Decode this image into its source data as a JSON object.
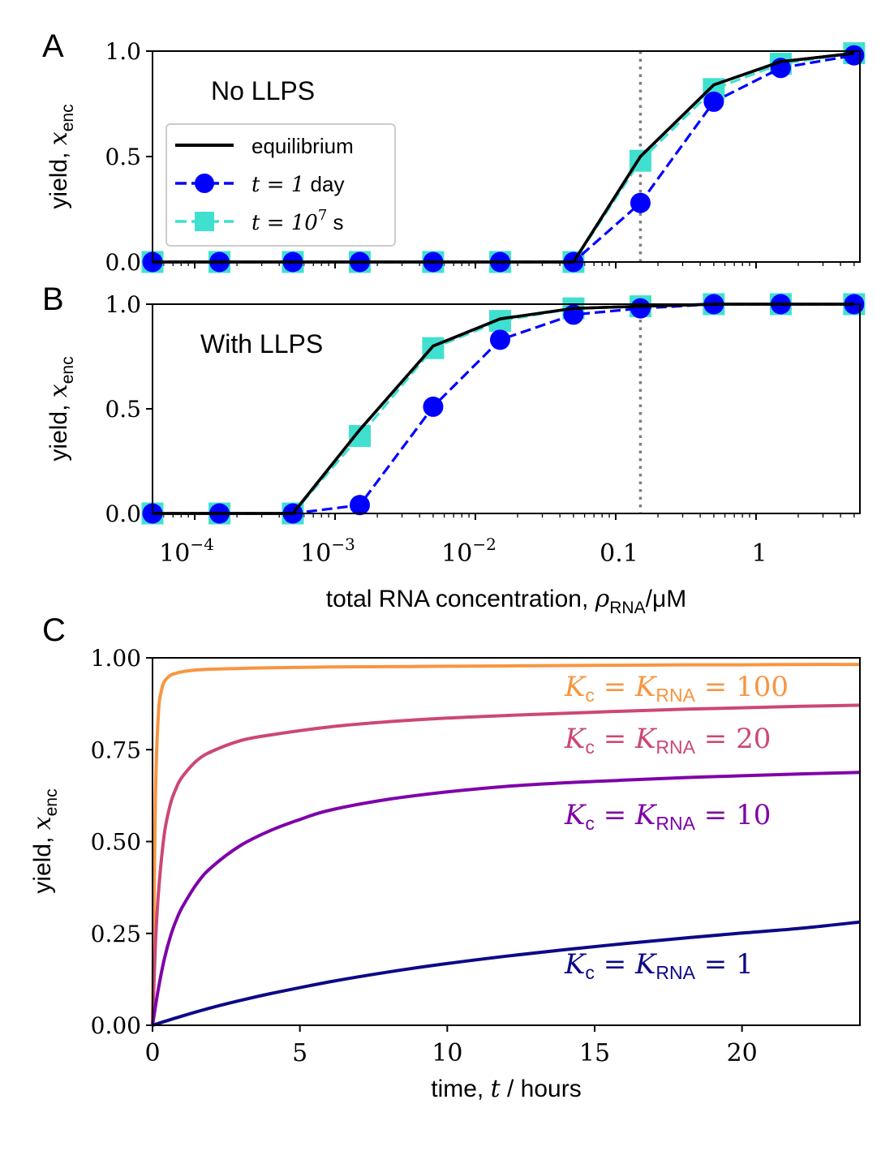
{
  "chart_data": [
    {
      "type": "line",
      "panel_label": "A",
      "annotation": "No LLPS",
      "ylabel": "yield, ",
      "ylabel_symbol": "x",
      "ylabel_sub": "enc",
      "xscale": "log",
      "xlim": [
        5e-05,
        5.5
      ],
      "ylim": [
        0,
        1
      ],
      "yticks": [
        "0.0",
        "0.5",
        "1.0"
      ],
      "vline_x": 0.15,
      "legend": {
        "position": "upper-left",
        "entries": [
          {
            "label": "equilibrium",
            "color": "#000000",
            "style": "solid"
          },
          {
            "label_math": "t = 1",
            "label_unit": " day",
            "color": "#0000ff",
            "style": "dashed",
            "marker": "circle"
          },
          {
            "label_math": "t = 10",
            "label_sup": "7",
            "label_unit": " s",
            "color": "#40e0d0",
            "style": "dashed",
            "marker": "square"
          }
        ]
      },
      "series": [
        {
          "name": "equilibrium",
          "color": "#000000",
          "x": [
            5e-05,
            0.00015,
            0.0005,
            0.0015,
            0.005,
            0.015,
            0.05,
            0.15,
            0.5,
            1.5,
            5.0
          ],
          "y": [
            0,
            0,
            0,
            0,
            0,
            0,
            0,
            0.5,
            0.84,
            0.95,
            0.99
          ]
        },
        {
          "name": "t = 10^7 s",
          "color": "#40e0d0",
          "x": [
            5e-05,
            0.00015,
            0.0005,
            0.0015,
            0.005,
            0.015,
            0.05,
            0.15,
            0.5,
            1.5,
            5.0
          ],
          "y": [
            0,
            0,
            0,
            0,
            0,
            0,
            0,
            0.48,
            0.82,
            0.94,
            0.99
          ]
        },
        {
          "name": "t = 1 day",
          "color": "#0000ff",
          "x": [
            5e-05,
            0.00015,
            0.0005,
            0.0015,
            0.005,
            0.015,
            0.05,
            0.15,
            0.5,
            1.5,
            5.0
          ],
          "y": [
            0,
            0,
            0,
            0,
            0,
            0,
            0,
            0.28,
            0.76,
            0.92,
            0.98
          ]
        }
      ]
    },
    {
      "type": "line",
      "panel_label": "B",
      "annotation": "With LLPS",
      "ylabel": "yield, ",
      "ylabel_symbol": "x",
      "ylabel_sub": "enc",
      "xscale": "log",
      "xlim": [
        5e-05,
        5.5
      ],
      "ylim": [
        0,
        1
      ],
      "yticks": [
        "0.0",
        "0.5",
        "1.0"
      ],
      "xticks": [
        {
          "value": 0.0001,
          "base": "10",
          "exp": "−4"
        },
        {
          "value": 0.001,
          "base": "10",
          "exp": "−3"
        },
        {
          "value": 0.01,
          "base": "10",
          "exp": "−2"
        },
        {
          "value": 0.1,
          "text": "0.1"
        },
        {
          "value": 1,
          "text": "1"
        }
      ],
      "xlabel": "total RNA concentration, ",
      "xlabel_symbol": "ρ",
      "xlabel_sub": "RNA",
      "xlabel_unit": "/μM",
      "vline_x": 0.15,
      "series": [
        {
          "name": "equilibrium",
          "color": "#000000",
          "x": [
            5e-05,
            0.00015,
            0.0005,
            0.0015,
            0.005,
            0.015,
            0.05,
            0.15,
            0.5,
            1.5,
            5.0
          ],
          "y": [
            0,
            0,
            0,
            0.4,
            0.8,
            0.93,
            0.98,
            0.99,
            1.0,
            1.0,
            1.0
          ]
        },
        {
          "name": "t = 10^7 s",
          "color": "#40e0d0",
          "x": [
            5e-05,
            0.00015,
            0.0005,
            0.0015,
            0.005,
            0.015,
            0.05,
            0.15,
            0.5,
            1.5,
            5.0
          ],
          "y": [
            0,
            0,
            0,
            0.37,
            0.79,
            0.92,
            0.98,
            0.99,
            1.0,
            1.0,
            1.0
          ]
        },
        {
          "name": "t = 1 day",
          "color": "#0000ff",
          "x": [
            5e-05,
            0.00015,
            0.0005,
            0.0015,
            0.005,
            0.015,
            0.05,
            0.15,
            0.5,
            1.5,
            5.0
          ],
          "y": [
            0,
            0,
            0,
            0.04,
            0.51,
            0.83,
            0.95,
            0.98,
            1.0,
            1.0,
            1.0
          ]
        }
      ]
    },
    {
      "type": "line",
      "panel_label": "C",
      "ylabel": "yield, ",
      "ylabel_symbol": "x",
      "ylabel_sub": "enc",
      "xlabel": "time, ",
      "xlabel_symbol": "t",
      "xlabel_unit": " / hours",
      "xlim": [
        0,
        24
      ],
      "ylim": [
        0,
        1
      ],
      "xticks": [
        "0",
        "5",
        "10",
        "15",
        "20"
      ],
      "yticks": [
        "0.00",
        "0.25",
        "0.50",
        "0.75",
        "1.00"
      ],
      "series": [
        {
          "name": "Kc = KRNA = 100",
          "label_value": "100",
          "color": "#f89540",
          "x": [
            0,
            0.1,
            0.2,
            0.3,
            0.4,
            0.6,
            0.8,
            1,
            1.5,
            2,
            3,
            4,
            6,
            8,
            10,
            12,
            14,
            16,
            18,
            20,
            22,
            24
          ],
          "y": [
            0,
            0.62,
            0.85,
            0.91,
            0.935,
            0.952,
            0.958,
            0.962,
            0.967,
            0.969,
            0.971,
            0.973,
            0.975,
            0.976,
            0.977,
            0.978,
            0.979,
            0.98,
            0.981,
            0.981,
            0.982,
            0.982
          ]
        },
        {
          "name": "Kc = KRNA = 20",
          "label_value": "20",
          "color": "#cc4778",
          "x": [
            0,
            0.1,
            0.2,
            0.4,
            0.6,
            0.8,
            1,
            1.5,
            2,
            3,
            4,
            6,
            8,
            10,
            12,
            14,
            16,
            18,
            20,
            22,
            24
          ],
          "y": [
            0,
            0.22,
            0.36,
            0.52,
            0.6,
            0.645,
            0.675,
            0.72,
            0.745,
            0.775,
            0.79,
            0.812,
            0.826,
            0.836,
            0.843,
            0.849,
            0.855,
            0.86,
            0.864,
            0.868,
            0.871
          ]
        },
        {
          "name": "Kc = KRNA = 10",
          "label_value": "10",
          "color": "#7e03a8",
          "x": [
            0,
            0.2,
            0.4,
            0.6,
            0.8,
            1,
            1.5,
            2,
            3,
            4,
            5,
            6,
            8,
            10,
            12,
            14,
            16,
            18,
            20,
            22,
            24
          ],
          "y": [
            0,
            0.1,
            0.18,
            0.24,
            0.285,
            0.32,
            0.385,
            0.43,
            0.49,
            0.53,
            0.56,
            0.585,
            0.615,
            0.635,
            0.65,
            0.66,
            0.667,
            0.674,
            0.679,
            0.684,
            0.688
          ]
        },
        {
          "name": "Kc = KRNA = 1",
          "label_value": "1",
          "color": "#0d0887",
          "x": [
            0,
            1,
            2,
            3,
            4,
            6,
            8,
            10,
            12,
            14,
            16,
            18,
            20,
            22,
            24
          ],
          "y": [
            0,
            0.025,
            0.048,
            0.068,
            0.086,
            0.118,
            0.145,
            0.168,
            0.188,
            0.206,
            0.222,
            0.237,
            0.251,
            0.264,
            0.281
          ]
        }
      ]
    }
  ]
}
